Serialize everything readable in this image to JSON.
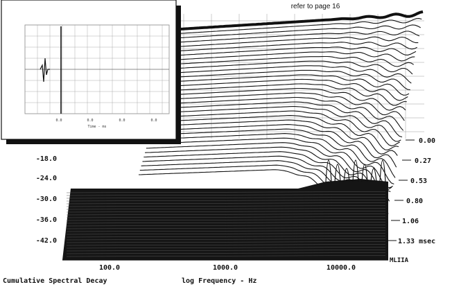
{
  "header": {
    "note": "refer to page 16"
  },
  "chart_data": {
    "type": "waterfall",
    "title": "Cumulative Spectral Decay",
    "xlabel": "log Frequency - Hz",
    "x_scale": "log",
    "x_ticks": [
      {
        "value": 100,
        "label": "100.0"
      },
      {
        "value": 1000,
        "label": "1000.0"
      },
      {
        "value": 10000,
        "label": "10000.0"
      }
    ],
    "y_ticks": [
      "-18.0",
      "-24.0",
      "-30.0",
      "-36.0",
      "-42.0"
    ],
    "z_ticks": [
      "0.00",
      "0.27",
      "0.53",
      "0.80",
      "1.06",
      "1.33 msec"
    ],
    "brand": "MLIIA",
    "grid": true
  },
  "inset": {
    "xticks": [
      "0.0",
      "0.0",
      "0.0",
      "0.0",
      "0.0"
    ],
    "xlabel": "Time - ms"
  },
  "colors": {
    "ink": "#111111",
    "paper": "#ffffff",
    "grid": "#9a9a9a",
    "mass": "#151515"
  }
}
